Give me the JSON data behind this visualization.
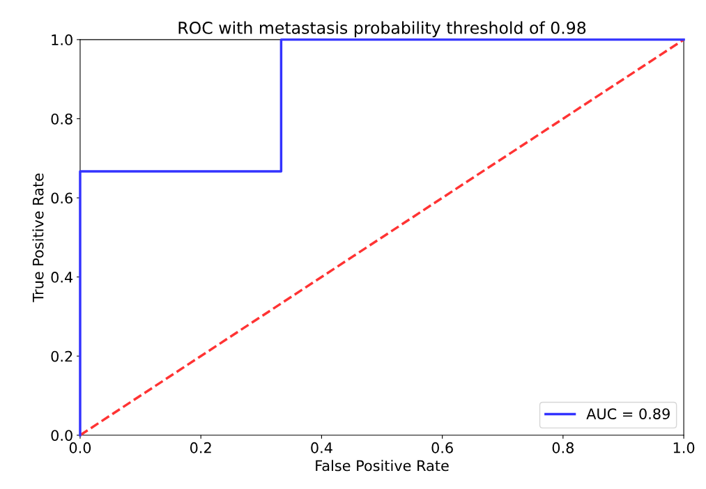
{
  "chart_data": {
    "type": "line",
    "title": "ROC with metastasis probability threshold of 0.98",
    "xlabel": "False Positive Rate",
    "ylabel": "True Positive Rate",
    "series": [
      {
        "name": "AUC = 0.89",
        "color": "#3333ff",
        "x": [
          0,
          0,
          0.333,
          0.333,
          1
        ],
        "values": [
          0,
          0.667,
          0.667,
          1,
          1
        ],
        "line_style": "solid"
      },
      {
        "color": "#ff3333",
        "x": [
          0,
          1
        ],
        "values": [
          0,
          1
        ],
        "line_style": "dashed"
      }
    ],
    "xlim": [
      0,
      1
    ],
    "ylim": [
      0,
      1
    ],
    "xticks": [
      {
        "value": 0,
        "label": "0.0"
      },
      {
        "value": 0.2,
        "label": "0.2"
      },
      {
        "value": 0.4,
        "label": "0.4"
      },
      {
        "value": 0.6,
        "label": "0.6"
      },
      {
        "value": 0.8,
        "label": "0.8"
      },
      {
        "value": 1,
        "label": "1.0"
      }
    ],
    "yticks": [
      {
        "value": 0,
        "label": "0.0"
      },
      {
        "value": 0.2,
        "label": "0.2"
      },
      {
        "value": 0.4,
        "label": "0.4"
      },
      {
        "value": 0.6,
        "label": "0.6"
      },
      {
        "value": 0.8,
        "label": "0.8"
      },
      {
        "value": 1,
        "label": "1.0"
      }
    ],
    "grid": false,
    "legend": "bottom right",
    "marker": "none"
  }
}
